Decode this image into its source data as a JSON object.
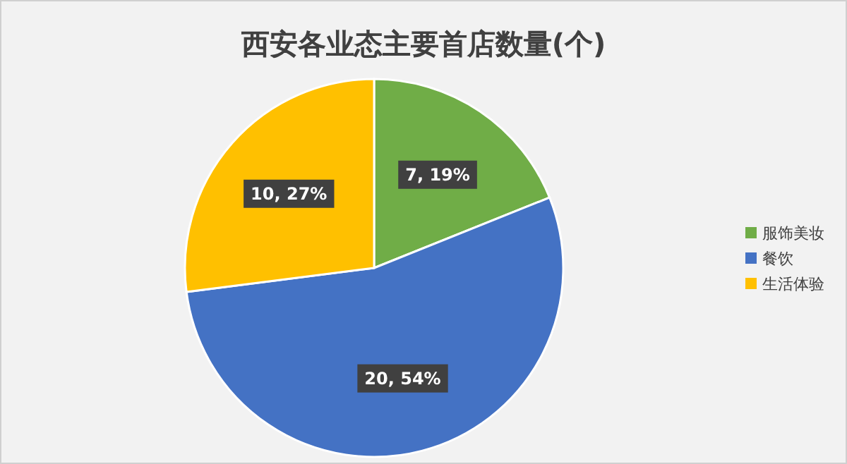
{
  "chart_data": {
    "type": "pie",
    "title": "西安各业态主要首店数量(个)",
    "categories": [
      "服饰美妆",
      "餐饮",
      "生活体验"
    ],
    "values": [
      7,
      20,
      10
    ],
    "colors": [
      "#70ad47",
      "#4472c4",
      "#ffc000"
    ],
    "value_labels": [
      "7, 19%",
      "20, 54%",
      "10, 27%"
    ],
    "legend": "right"
  }
}
